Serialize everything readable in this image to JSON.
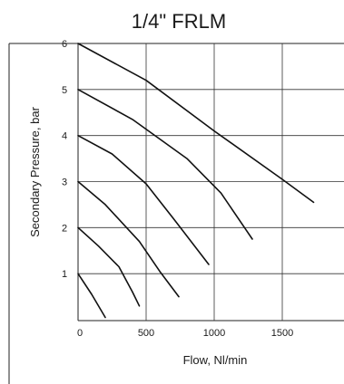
{
  "chart_data": {
    "type": "line",
    "title": "1/4\" FRLM",
    "xlabel": "Flow, Nl/min",
    "ylabel": "Secondary Pressure, bar",
    "xlim": [
      0,
      2000
    ],
    "ylim": [
      0,
      6
    ],
    "x_ticks": [
      "0",
      "500",
      "1000",
      "1500"
    ],
    "x_tick_values": [
      0,
      500,
      1000,
      1500
    ],
    "y_ticks": [
      "1",
      "2",
      "3",
      "4",
      "5",
      "6"
    ],
    "y_tick_values": [
      1,
      2,
      3,
      4,
      5,
      6
    ],
    "grid": true,
    "series": [
      {
        "x": [
          0,
          100,
          200
        ],
        "y": [
          1.0,
          0.55,
          0.05
        ]
      },
      {
        "x": [
          0,
          150,
          300,
          400,
          450
        ],
        "y": [
          2.0,
          1.6,
          1.15,
          0.6,
          0.3
        ]
      },
      {
        "x": [
          0,
          200,
          450,
          600,
          740
        ],
        "y": [
          3.0,
          2.5,
          1.7,
          1.05,
          0.5
        ]
      },
      {
        "x": [
          0,
          250,
          500,
          700,
          960
        ],
        "y": [
          4.0,
          3.6,
          2.95,
          2.2,
          1.2
        ]
      },
      {
        "x": [
          0,
          400,
          800,
          1050,
          1280
        ],
        "y": [
          5.0,
          4.35,
          3.5,
          2.75,
          1.75
        ]
      },
      {
        "x": [
          0,
          500,
          1000,
          1500,
          1730
        ],
        "y": [
          6.0,
          5.2,
          4.1,
          3.05,
          2.55
        ]
      }
    ]
  }
}
